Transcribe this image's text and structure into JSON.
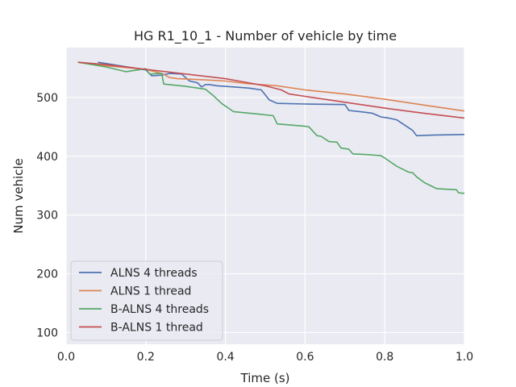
{
  "chart_data": {
    "type": "line",
    "title": "HG R1_10_1 - Number of vehicle by time",
    "xlabel": "Time (s)",
    "ylabel": "Num vehicle",
    "xlim": [
      0.0,
      1.0
    ],
    "ylim": [
      80,
      585
    ],
    "xticks": [
      0.0,
      0.2,
      0.4,
      0.6,
      0.8,
      1.0
    ],
    "xtick_labels": [
      "0.0",
      "0.2",
      "0.4",
      "0.6",
      "0.8",
      "1.0"
    ],
    "yticks": [
      100,
      200,
      300,
      400,
      500
    ],
    "ytick_labels": [
      "100",
      "200",
      "300",
      "400",
      "500"
    ],
    "grid": true,
    "legend_position": "lower-left",
    "series": [
      {
        "name": "ALNS 4 threads",
        "color": "#4c72b0",
        "points": [
          [
            0.08,
            560
          ],
          [
            0.2,
            547
          ],
          [
            0.215,
            537
          ],
          [
            0.24,
            538
          ],
          [
            0.26,
            541
          ],
          [
            0.29,
            540
          ],
          [
            0.31,
            528
          ],
          [
            0.33,
            525
          ],
          [
            0.34,
            518
          ],
          [
            0.35,
            522
          ],
          [
            0.36,
            522
          ],
          [
            0.38,
            520
          ],
          [
            0.42,
            518
          ],
          [
            0.46,
            516
          ],
          [
            0.49,
            513
          ],
          [
            0.51,
            496
          ],
          [
            0.53,
            490
          ],
          [
            0.6,
            489
          ],
          [
            0.7,
            488
          ],
          [
            0.71,
            478
          ],
          [
            0.75,
            475
          ],
          [
            0.77,
            473
          ],
          [
            0.79,
            467
          ],
          [
            0.81,
            465
          ],
          [
            0.83,
            462
          ],
          [
            0.85,
            453
          ],
          [
            0.87,
            444
          ],
          [
            0.88,
            435
          ],
          [
            0.92,
            436
          ],
          [
            1.0,
            437
          ]
        ]
      },
      {
        "name": "ALNS 1 thread",
        "color": "#dd8452",
        "points": [
          [
            0.03,
            560
          ],
          [
            0.1,
            554
          ],
          [
            0.2,
            548
          ],
          [
            0.24,
            541
          ],
          [
            0.26,
            534
          ],
          [
            0.28,
            532
          ],
          [
            0.35,
            530
          ],
          [
            0.4,
            528
          ],
          [
            0.45,
            524
          ],
          [
            0.53,
            520
          ],
          [
            0.6,
            513
          ],
          [
            0.7,
            506
          ],
          [
            0.8,
            497
          ],
          [
            0.9,
            487
          ],
          [
            1.0,
            477
          ]
        ]
      },
      {
        "name": "B-ALNS 4 threads",
        "color": "#55a868",
        "points": [
          [
            0.03,
            560
          ],
          [
            0.1,
            552
          ],
          [
            0.15,
            544
          ],
          [
            0.2,
            549
          ],
          [
            0.21,
            540
          ],
          [
            0.24,
            541
          ],
          [
            0.245,
            523
          ],
          [
            0.3,
            519
          ],
          [
            0.35,
            514
          ],
          [
            0.37,
            503
          ],
          [
            0.39,
            490
          ],
          [
            0.42,
            476
          ],
          [
            0.45,
            474
          ],
          [
            0.48,
            472
          ],
          [
            0.52,
            469
          ],
          [
            0.53,
            455
          ],
          [
            0.6,
            451
          ],
          [
            0.61,
            450
          ],
          [
            0.63,
            435
          ],
          [
            0.64,
            434
          ],
          [
            0.66,
            425
          ],
          [
            0.68,
            424
          ],
          [
            0.69,
            414
          ],
          [
            0.71,
            412
          ],
          [
            0.72,
            404
          ],
          [
            0.75,
            403
          ],
          [
            0.79,
            401
          ],
          [
            0.8,
            397
          ],
          [
            0.83,
            383
          ],
          [
            0.86,
            373
          ],
          [
            0.87,
            372
          ],
          [
            0.88,
            365
          ],
          [
            0.9,
            355
          ],
          [
            0.93,
            345
          ],
          [
            0.95,
            344
          ],
          [
            0.98,
            343
          ],
          [
            0.985,
            338
          ],
          [
            0.995,
            337
          ],
          [
            1.0,
            337
          ]
        ]
      },
      {
        "name": "B-ALNS 1 thread",
        "color": "#c44e52",
        "points": [
          [
            0.03,
            560
          ],
          [
            0.1,
            556
          ],
          [
            0.2,
            548
          ],
          [
            0.3,
            540
          ],
          [
            0.4,
            532
          ],
          [
            0.45,
            526
          ],
          [
            0.5,
            520
          ],
          [
            0.54,
            513
          ],
          [
            0.56,
            506
          ],
          [
            0.6,
            502
          ],
          [
            0.7,
            492
          ],
          [
            0.8,
            482
          ],
          [
            0.9,
            473
          ],
          [
            1.0,
            465
          ]
        ]
      }
    ]
  }
}
